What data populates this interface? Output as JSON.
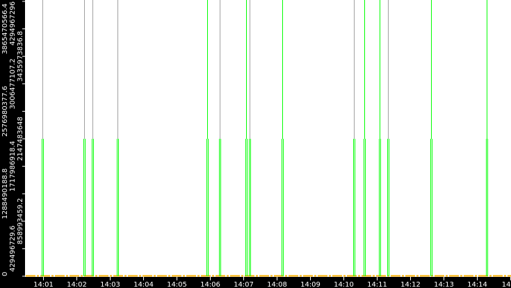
{
  "chart_data": {
    "type": "bar",
    "title": "",
    "xlabel": "",
    "ylabel": "",
    "x_range": [
      "14:00:07",
      "14:15:01"
    ],
    "ylim": [
      0,
      4294967296
    ],
    "grid": false,
    "x_tick_labels": [
      "14:01",
      "14:02",
      "14:03",
      "14:04",
      "14:05",
      "14:06",
      "14:07",
      "14:08",
      "14:09",
      "14:10",
      "14:11",
      "14:12",
      "14:13",
      "14:14",
      "14"
    ],
    "y_tick_labels": [
      "0",
      "429496729.6",
      "858993459.2",
      "1288490188.8",
      "1717986918.4",
      "2147483648",
      "2576980377.6",
      "3006477107.2",
      "3435973836.8",
      "3865470566.4",
      "4294967296"
    ],
    "colors": {
      "bar": "#00ff00",
      "marker_gray": "#a0a0a0",
      "marker_green": "#00ff00",
      "baseline": "#ffb000",
      "background": "#ffffff",
      "axis": "#000000"
    },
    "events": [
      {
        "time": "14:00:59",
        "value": 2147483648,
        "marker": "gray"
      },
      {
        "time": "14:02:14",
        "value": 2147483648,
        "marker": "gray"
      },
      {
        "time": "14:02:29",
        "value": 2147483648,
        "marker": "gray"
      },
      {
        "time": "14:03:14",
        "value": 2147483648,
        "marker": "gray"
      },
      {
        "time": "14:05:55",
        "value": 2147483648,
        "marker": "green"
      },
      {
        "time": "14:06:18",
        "value": 2147483648,
        "marker": "gray"
      },
      {
        "time": "14:07:05",
        "value": 2147483648,
        "marker": "green"
      },
      {
        "time": "14:07:11",
        "value": 2147483648,
        "marker": "gray"
      },
      {
        "time": "14:08:10",
        "value": 2147483648,
        "marker": "green"
      },
      {
        "time": "14:10:19",
        "value": 2147483648,
        "marker": "gray"
      },
      {
        "time": "14:10:38",
        "value": 2147483648,
        "marker": "green"
      },
      {
        "time": "14:11:05",
        "value": 2147483648,
        "marker": "green"
      },
      {
        "time": "14:11:20",
        "value": 2147483648,
        "marker": "gray"
      },
      {
        "time": "14:12:38",
        "value": 2147483648,
        "marker": "green"
      },
      {
        "time": "14:14:18",
        "value": 2147483648,
        "marker": "green"
      }
    ],
    "baseline_value": 0
  }
}
